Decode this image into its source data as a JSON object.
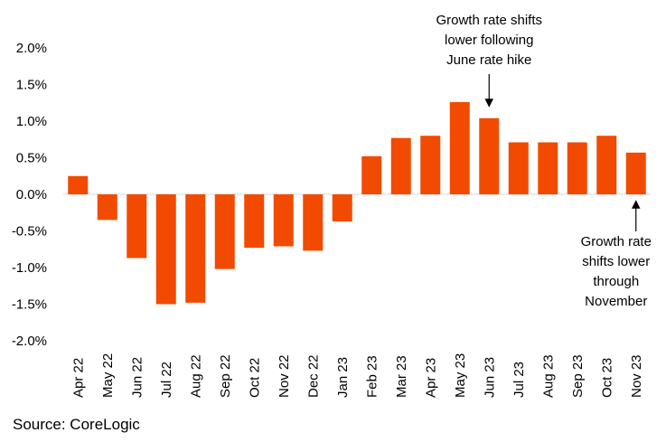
{
  "chart_data": {
    "type": "bar",
    "title": "",
    "xlabel": "",
    "ylabel": "",
    "categories": [
      "Apr 22",
      "May 22",
      "Jun 22",
      "Jul 22",
      "Aug 22",
      "Sep 22",
      "Oct 22",
      "Nov 22",
      "Dec 22",
      "Jan 23",
      "Feb 23",
      "Mar 23",
      "Apr 23",
      "May 23",
      "Jun 23",
      "Jul 23",
      "Aug 23",
      "Sep 23",
      "Oct 23",
      "Nov 23"
    ],
    "values": [
      0.25,
      -0.35,
      -0.87,
      -1.5,
      -1.48,
      -1.02,
      -0.73,
      -0.71,
      -0.77,
      -0.37,
      0.52,
      0.77,
      0.8,
      1.26,
      1.04,
      0.71,
      0.71,
      0.71,
      0.8,
      0.57
    ],
    "ylim": [
      -2.0,
      2.0
    ],
    "yticks": [
      2.0,
      1.5,
      1.0,
      0.5,
      0.0,
      -0.5,
      -1.0,
      -1.5,
      -2.0
    ],
    "ytick_labels": [
      "2.0%",
      "1.5%",
      "1.0%",
      "0.5%",
      "0.0%",
      "-0.5%",
      "-1.0%",
      "-1.5%",
      "-2.0%"
    ],
    "bar_color": "#f24a00",
    "grid": false,
    "annotations": [
      {
        "category": "Jun 23",
        "lines": [
          "Growth rate shifts",
          "lower following",
          "June rate hike"
        ]
      },
      {
        "category": "Nov 23",
        "lines": [
          "Growth rate",
          "shifts lower",
          "through",
          "November"
        ]
      }
    ]
  },
  "source": "Source: CoreLogic"
}
